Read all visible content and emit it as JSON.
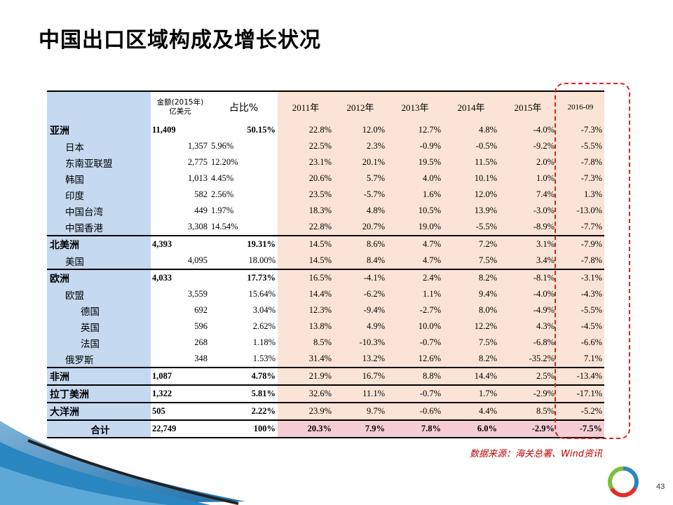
{
  "title": "中国出口区域构成及增长状况",
  "table": {
    "header": {
      "amount_label_line1": "金额(2015年)",
      "amount_label_line2": "亿美元",
      "share_label": "占比%",
      "years": [
        "2011年",
        "2012年",
        "2013年",
        "2014年",
        "2015年",
        "2016-09"
      ]
    },
    "rows": [
      {
        "name": "亚洲",
        "level": 0,
        "amount": "11,409",
        "share": "50.15%",
        "g": [
          "22.8%",
          "12.0%",
          "12.7%",
          "4.8%",
          "-4.0%",
          "-7.3%"
        ]
      },
      {
        "name": "日本",
        "level": 1,
        "amount": "1,357",
        "share": "5.96%",
        "g": [
          "22.5%",
          "2.3%",
          "-0.9%",
          "-0.5%",
          "-9.2%",
          "-5.5%"
        ]
      },
      {
        "name": "东南亚联盟",
        "level": 1,
        "amount": "2,775",
        "share": "12.20%",
        "g": [
          "23.1%",
          "20.1%",
          "19.5%",
          "11.5%",
          "2.0%",
          "-7.8%"
        ]
      },
      {
        "name": "韩国",
        "level": 1,
        "amount": "1,013",
        "share": "4.45%",
        "g": [
          "20.6%",
          "5.7%",
          "4.0%",
          "10.1%",
          "1.0%",
          "-7.3%"
        ]
      },
      {
        "name": "印度",
        "level": 1,
        "amount": "582",
        "share": "2.56%",
        "g": [
          "23.5%",
          "-5.7%",
          "1.6%",
          "12.0%",
          "7.4%",
          "1.3%"
        ]
      },
      {
        "name": "中国台湾",
        "level": 1,
        "amount": "449",
        "share": "1.97%",
        "g": [
          "18.3%",
          "4.8%",
          "10.5%",
          "13.9%",
          "-3.0%",
          "-13.0%"
        ]
      },
      {
        "name": "中国香港",
        "level": 1,
        "amount": "3,308",
        "share": "14.54%",
        "g": [
          "22.8%",
          "20.7%",
          "19.0%",
          "-5.5%",
          "-8.9%",
          "-7.7%"
        ]
      },
      {
        "name": "北美洲",
        "level": 0,
        "amount": "4,393",
        "share": "19.31%",
        "g": [
          "14.5%",
          "8.6%",
          "4.7%",
          "7.2%",
          "3.1%",
          "-7.9%"
        ]
      },
      {
        "name": "美国",
        "level": 1,
        "amount": "4,095",
        "share": "18.00%",
        "g": [
          "14.5%",
          "8.4%",
          "4.7%",
          "7.5%",
          "3.4%",
          "-7.8%"
        ]
      },
      {
        "name": "欧洲",
        "level": 0,
        "amount": "4,033",
        "share": "17.73%",
        "g": [
          "16.5%",
          "-4.1%",
          "2.4%",
          "8.2%",
          "-8.1%",
          "-3.1%"
        ]
      },
      {
        "name": "欧盟",
        "level": 1,
        "amount": "3,559",
        "share": "15.64%",
        "g": [
          "14.4%",
          "-6.2%",
          "1.1%",
          "9.4%",
          "-4.0%",
          "-4.3%"
        ]
      },
      {
        "name": "德国",
        "level": 2,
        "amount": "692",
        "share": "3.04%",
        "g": [
          "12.3%",
          "-9.4%",
          "-2.7%",
          "8.0%",
          "-4.9%",
          "-5.5%"
        ]
      },
      {
        "name": "英国",
        "level": 2,
        "amount": "596",
        "share": "2.62%",
        "g": [
          "13.8%",
          "4.9%",
          "10.0%",
          "12.2%",
          "4.3%",
          "-4.5%"
        ]
      },
      {
        "name": "法国",
        "level": 2,
        "amount": "268",
        "share": "1.18%",
        "g": [
          "8.5%",
          "-10.3%",
          "-0.7%",
          "7.5%",
          "-6.8%",
          "-6.6%"
        ]
      },
      {
        "name": "俄罗斯",
        "level": 1,
        "amount": "348",
        "share": "1.53%",
        "g": [
          "31.4%",
          "13.2%",
          "12.6%",
          "8.2%",
          "-35.2%",
          "7.1%"
        ]
      },
      {
        "name": "非洲",
        "level": 0,
        "amount": "1,087",
        "share": "4.78%",
        "g": [
          "21.9%",
          "16.7%",
          "8.8%",
          "14.4%",
          "2.5%",
          "-13.4%"
        ]
      },
      {
        "name": "拉丁美洲",
        "level": 0,
        "amount": "1,322",
        "share": "5.81%",
        "g": [
          "32.6%",
          "11.1%",
          "-0.7%",
          "1.7%",
          "-2.9%",
          "-17.1%"
        ]
      },
      {
        "name": "大洋洲",
        "level": 0,
        "amount": "505",
        "share": "2.22%",
        "g": [
          "23.9%",
          "9.7%",
          "-0.6%",
          "4.4%",
          "8.5%",
          "-5.2%"
        ]
      },
      {
        "name": "合计",
        "level": 0,
        "total": true,
        "amount": "22,749",
        "share": "100%",
        "g": [
          "20.3%",
          "7.9%",
          "7.8%",
          "6.0%",
          "-2.9%",
          "-7.5%"
        ]
      }
    ]
  },
  "source": "数据来源：海关总署、Wind资讯",
  "page_number": "43",
  "colors": {
    "name_column_bg": "#c5d9f1",
    "growth_bg": "#fbe4d5",
    "total_bg": "#f6cdd5",
    "highlight_border": "#e02020",
    "source_text": "#c00000"
  }
}
